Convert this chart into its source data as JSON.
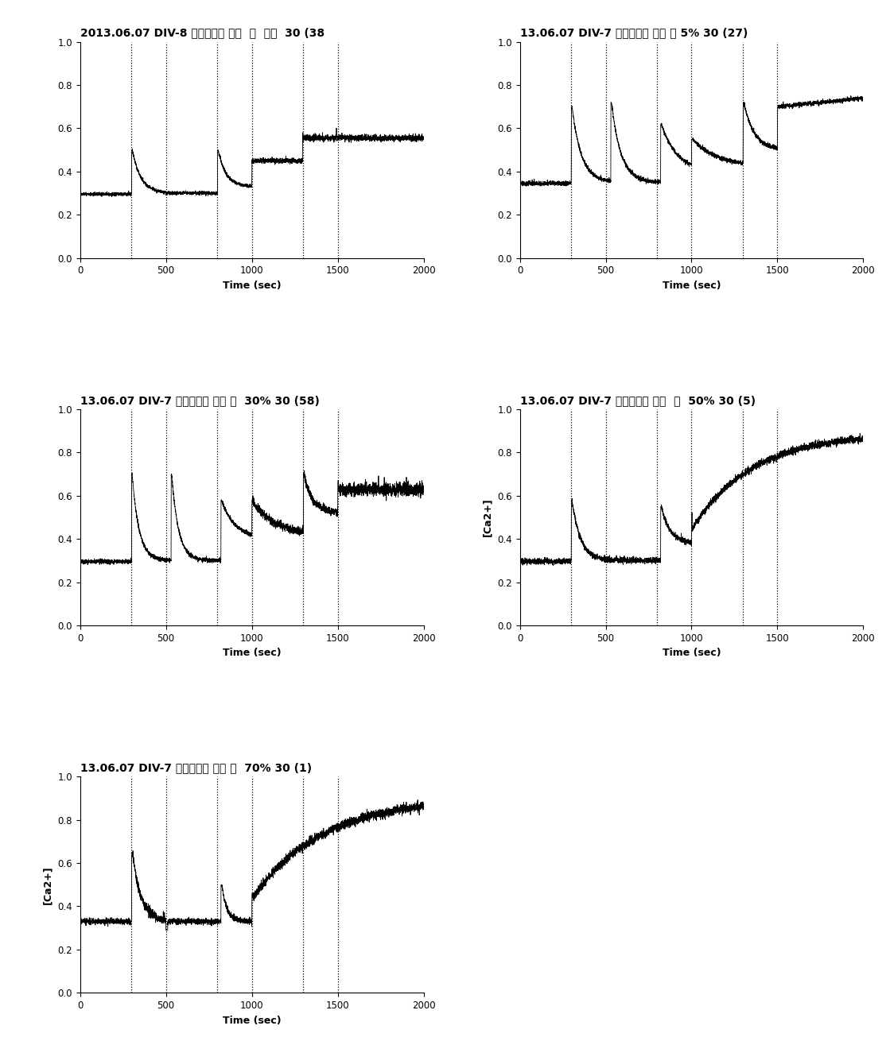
{
  "titles": [
    "2013.06.07 DIV-8 비타민나무 강원  잎  열수  30 (38",
    "13.06.07 DIV-7 비타민나무 강원 잎 5% 30 (27)",
    "13.06.07 DIV-7 비타민나무 강원 잎  30% 30 (58)",
    "13.06.07 DIV-7 비타민나무 강원  잎  50% 30 (5)",
    "13.06.07 DIV-7 비타민나무 강원 잎  70% 30 (1)"
  ],
  "vlines": [
    300,
    500,
    800,
    1000,
    1300,
    1500
  ],
  "xlim": [
    0,
    2000
  ],
  "ylim": [
    0.0,
    1.0
  ],
  "yticks": [
    0.0,
    0.2,
    0.4,
    0.6,
    0.8,
    1.0
  ],
  "xticks": [
    0,
    500,
    1000,
    1500,
    2000
  ],
  "xlabel": "Time (sec)",
  "ylabel": "[Ca2+]",
  "figsize": [
    11.19,
    13.15
  ],
  "dpi": 100
}
